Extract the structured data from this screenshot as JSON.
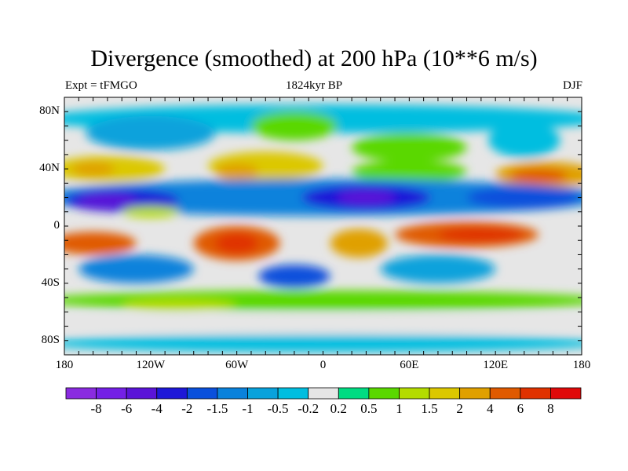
{
  "title": "Divergence (smoothed) at 200 hPa (10**6 m/s)",
  "left_subtitle": "Expt = tFMGO",
  "center_subtitle": "1824kyr BP",
  "right_subtitle": "DJF",
  "chart_data": {
    "type": "heatmap",
    "title": "Divergence (smoothed) at 200 hPa (10**6 m/s)",
    "x_range": [
      -180,
      180
    ],
    "y_range": [
      -90,
      90
    ],
    "x_ticks": [
      {
        "v": -180,
        "label": "180"
      },
      {
        "v": -120,
        "label": "120W"
      },
      {
        "v": -60,
        "label": "60W"
      },
      {
        "v": 0,
        "label": "0"
      },
      {
        "v": 60,
        "label": "60E"
      },
      {
        "v": 120,
        "label": "120E"
      },
      {
        "v": 180,
        "label": "180"
      }
    ],
    "y_ticks": [
      {
        "v": 80,
        "label": "80N"
      },
      {
        "v": 40,
        "label": "40N"
      },
      {
        "v": 0,
        "label": "0"
      },
      {
        "v": -40,
        "label": "40S"
      },
      {
        "v": -80,
        "label": "80S"
      }
    ],
    "colorbar_labels": [
      "-8",
      "-6",
      "-4",
      "-2",
      "-1.5",
      "-1",
      "-0.5",
      "-0.2",
      "0.2",
      "0.5",
      "1",
      "1.5",
      "2",
      "4",
      "6",
      "8"
    ],
    "colors": [
      "#8a2be0",
      "#7420e6",
      "#5a14d8",
      "#1e18d8",
      "#0a50dc",
      "#0a82dc",
      "#08a2dc",
      "#00bee0",
      "#e6e6e6",
      "#00dc82",
      "#5ad800",
      "#b4dc00",
      "#dcc800",
      "#e0a000",
      "#e05a00",
      "#e03200",
      "#e00a0a"
    ],
    "field_blobs": [
      {
        "lon": 0,
        "lat": 75,
        "rlon": 200,
        "rlat": 10,
        "c": 7
      },
      {
        "lon": -120,
        "lat": 65,
        "rlon": 45,
        "rlat": 12,
        "c": 6
      },
      {
        "lon": -20,
        "lat": 70,
        "rlon": 30,
        "rlat": 10,
        "c": 10
      },
      {
        "lon": 60,
        "lat": 55,
        "rlon": 40,
        "rlat": 10,
        "c": 10
      },
      {
        "lon": 140,
        "lat": 60,
        "rlon": 25,
        "rlat": 12,
        "c": 7
      },
      {
        "lon": -150,
        "lat": 40,
        "rlon": 40,
        "rlat": 9,
        "c": 12
      },
      {
        "lon": -160,
        "lat": 40,
        "rlon": 15,
        "rlat": 5,
        "c": 13
      },
      {
        "lon": -40,
        "lat": 42,
        "rlon": 40,
        "rlat": 10,
        "c": 12
      },
      {
        "lon": -60,
        "lat": 38,
        "rlon": 15,
        "rlat": 6,
        "c": 13
      },
      {
        "lon": 60,
        "lat": 38,
        "rlon": 40,
        "rlat": 8,
        "c": 10
      },
      {
        "lon": 155,
        "lat": 36,
        "rlon": 35,
        "rlat": 9,
        "c": 13
      },
      {
        "lon": 150,
        "lat": 35,
        "rlon": 20,
        "rlat": 5,
        "c": 14
      },
      {
        "lon": 0,
        "lat": 20,
        "rlon": 200,
        "rlat": 13,
        "c": 5
      },
      {
        "lon": -140,
        "lat": 18,
        "rlon": 40,
        "rlat": 8,
        "c": 3
      },
      {
        "lon": -150,
        "lat": 18,
        "rlon": 20,
        "rlat": 5,
        "c": 2
      },
      {
        "lon": 30,
        "lat": 20,
        "rlon": 45,
        "rlat": 9,
        "c": 3
      },
      {
        "lon": 30,
        "lat": 20,
        "rlon": 20,
        "rlat": 5,
        "c": 2
      },
      {
        "lon": 140,
        "lat": 20,
        "rlon": 40,
        "rlat": 8,
        "c": 4
      },
      {
        "lon": -120,
        "lat": 10,
        "rlon": 20,
        "rlat": 4,
        "c": 11
      },
      {
        "lon": -160,
        "lat": -12,
        "rlon": 30,
        "rlat": 8,
        "c": 14
      },
      {
        "lon": -60,
        "lat": -12,
        "rlon": 30,
        "rlat": 12,
        "c": 14
      },
      {
        "lon": -60,
        "lat": -12,
        "rlon": 15,
        "rlat": 7,
        "c": 15
      },
      {
        "lon": 25,
        "lat": -12,
        "rlon": 20,
        "rlat": 10,
        "c": 13
      },
      {
        "lon": 100,
        "lat": -6,
        "rlon": 50,
        "rlat": 9,
        "c": 14
      },
      {
        "lon": 110,
        "lat": -6,
        "rlon": 30,
        "rlat": 5,
        "c": 15
      },
      {
        "lon": -130,
        "lat": -30,
        "rlon": 40,
        "rlat": 10,
        "c": 5
      },
      {
        "lon": -20,
        "lat": -35,
        "rlon": 25,
        "rlat": 8,
        "c": 4
      },
      {
        "lon": 80,
        "lat": -30,
        "rlon": 40,
        "rlat": 10,
        "c": 6
      },
      {
        "lon": 0,
        "lat": -52,
        "rlon": 200,
        "rlat": 7,
        "c": 10
      },
      {
        "lon": -100,
        "lat": -55,
        "rlon": 40,
        "rlat": 4,
        "c": 11
      },
      {
        "lon": 0,
        "lat": -82,
        "rlon": 200,
        "rlat": 6,
        "c": 7
      },
      {
        "lon": 0,
        "lat": -68,
        "rlon": 200,
        "rlat": 6,
        "c": 8
      }
    ]
  }
}
